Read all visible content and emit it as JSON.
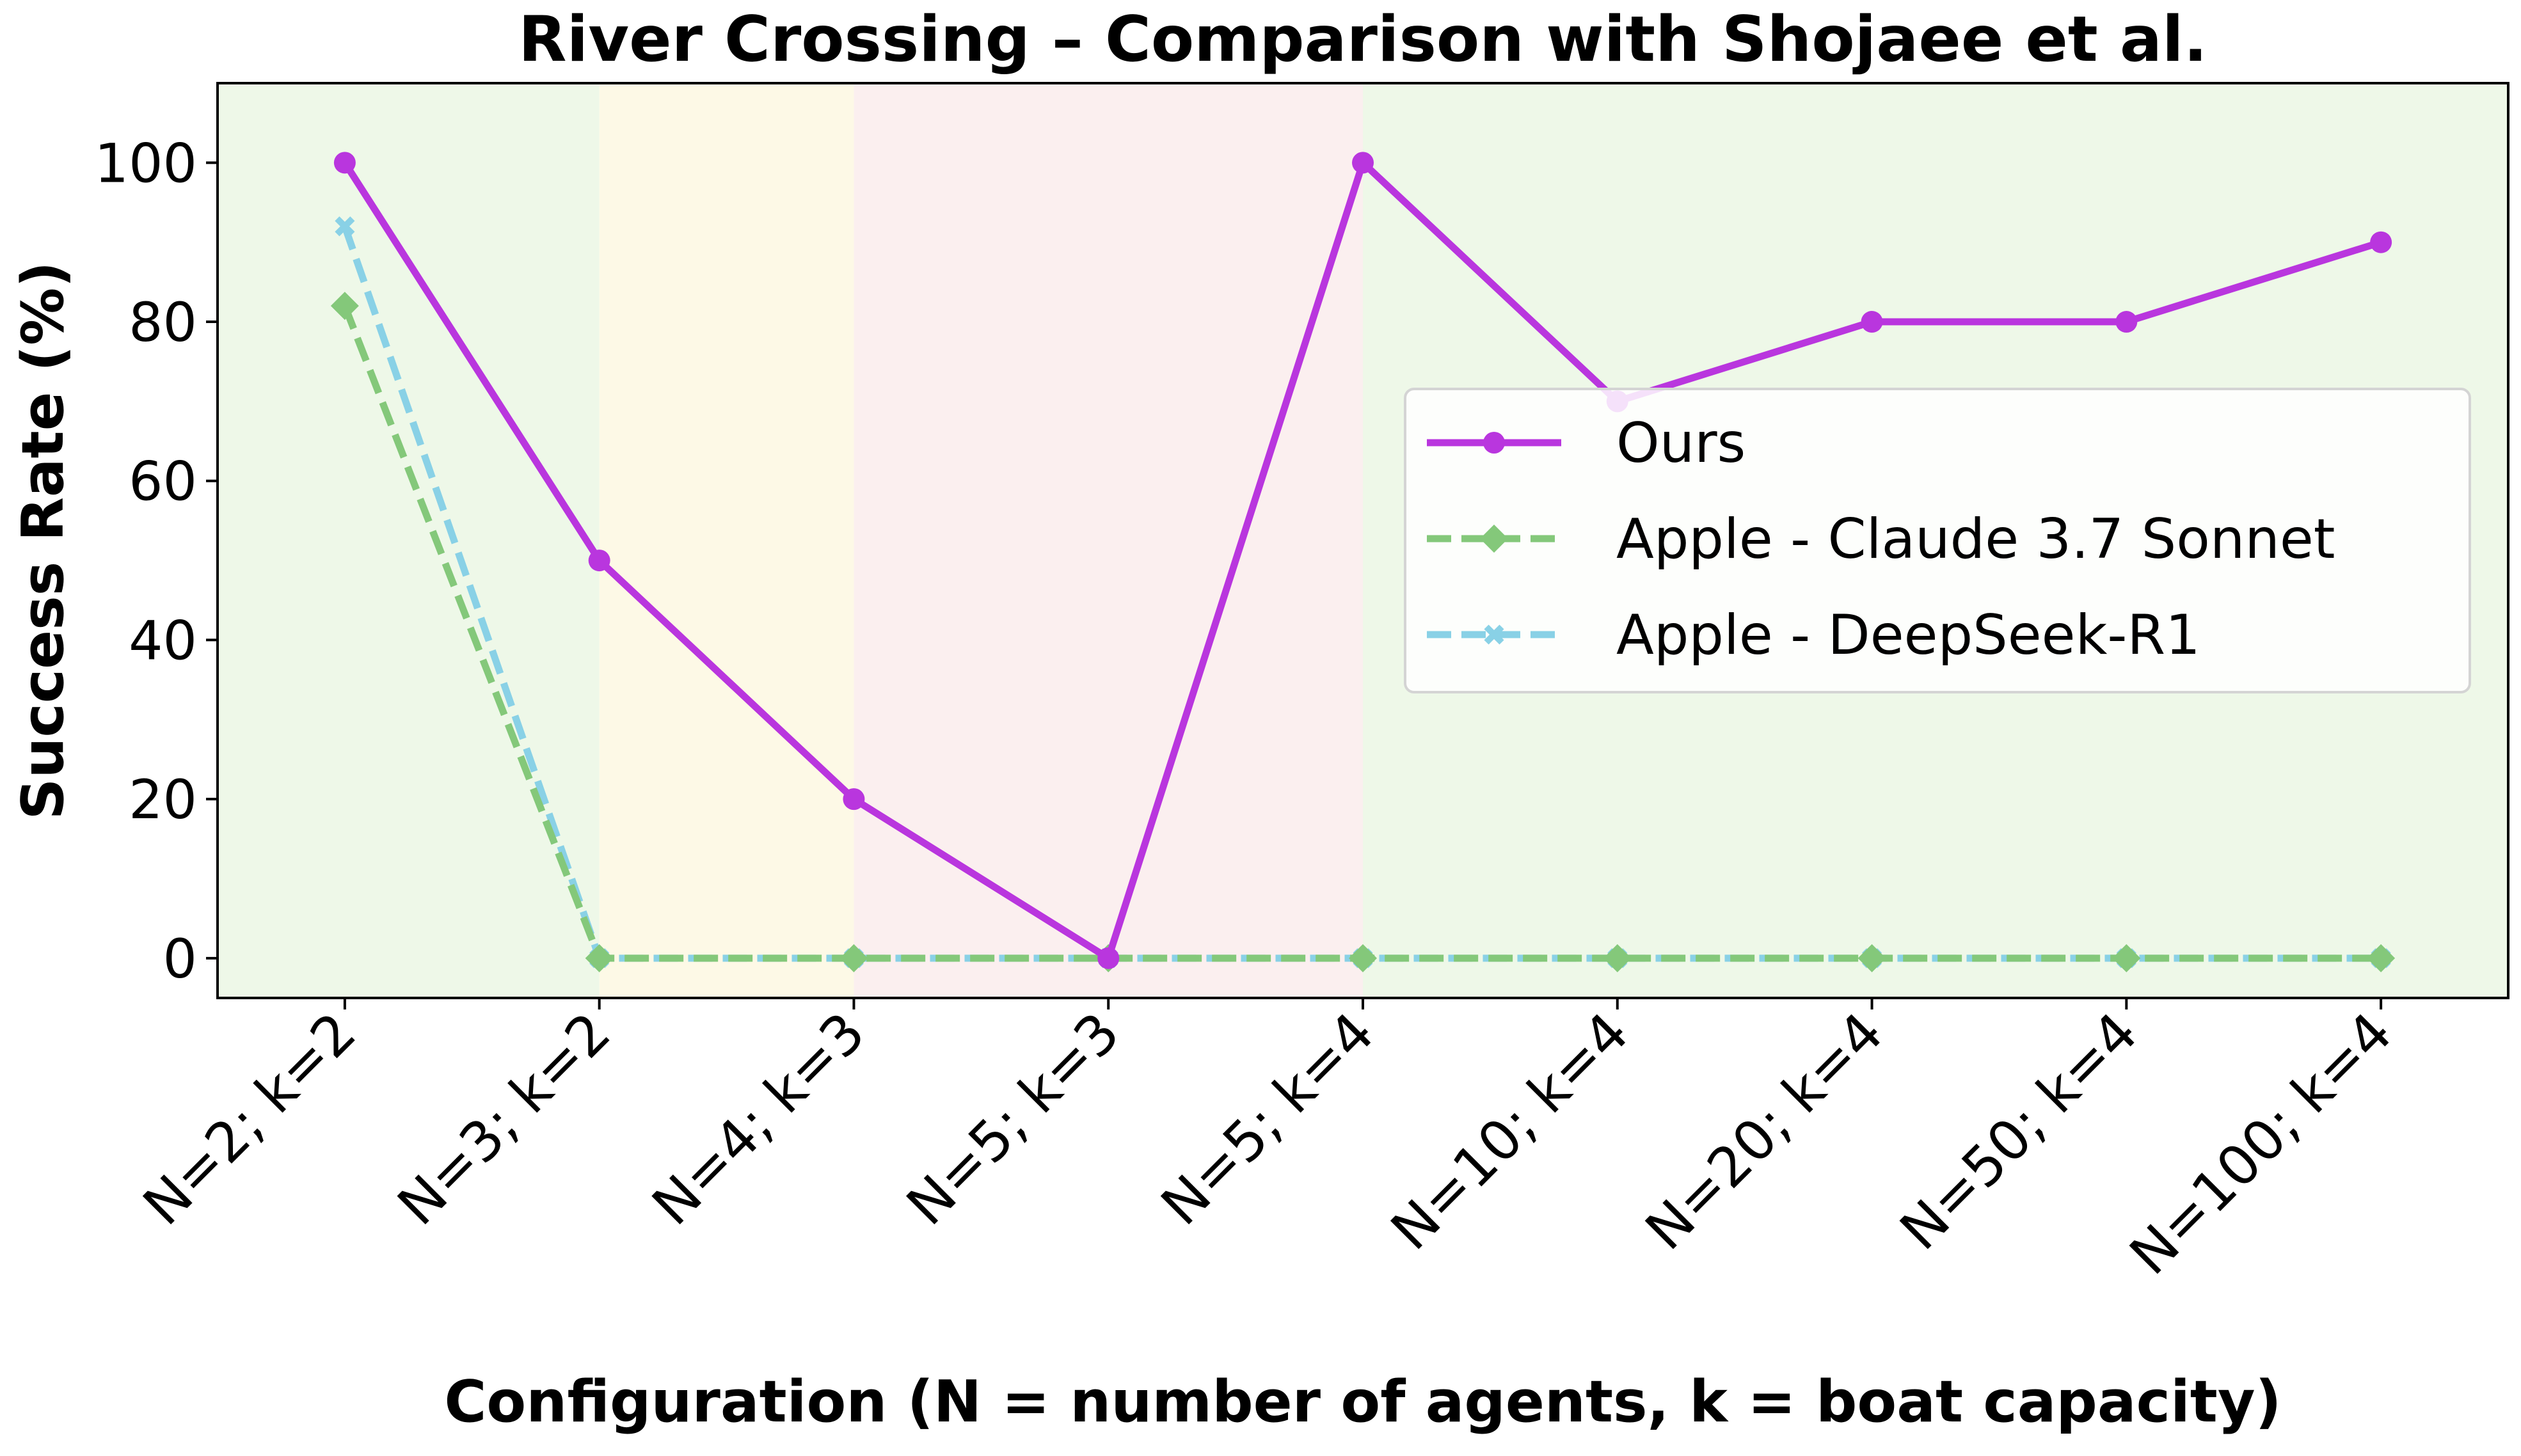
{
  "chart_data": {
    "type": "line",
    "title": "River Crossing – Comparison with Shojaee et al.",
    "xlabel": "Configuration (N = number of agents, k = boat capacity)",
    "ylabel": "Success Rate (%)",
    "categories": [
      "N=2; k=2",
      "N=3; k=2",
      "N=4; k=3",
      "N=5; k=3",
      "N=5; k=4",
      "N=10; k=4",
      "N=20; k=4",
      "N=50; k=4",
      "N=100; k=4"
    ],
    "ylim": [
      -5,
      110
    ],
    "yticks": [
      "0",
      "20",
      "40",
      "60",
      "80",
      "100"
    ],
    "grid": false,
    "legend_position": "center-right",
    "background_bands": [
      {
        "from_index": -0.5,
        "to_index": 1,
        "color": "#eef8e8"
      },
      {
        "from_index": 1,
        "to_index": 2,
        "color": "#fdf9e6"
      },
      {
        "from_index": 2,
        "to_index": 4,
        "color": "#fbefef"
      },
      {
        "from_index": 4,
        "to_index": 8.5,
        "color": "#eef8e8"
      }
    ],
    "series": [
      {
        "name": "Ours",
        "values": [
          100,
          50,
          20,
          0,
          100,
          70,
          80,
          80,
          90
        ],
        "color": "#b936de",
        "marker": "circle",
        "linestyle": "solid"
      },
      {
        "name": "Apple - Claude 3.7 Sonnet",
        "values": [
          82,
          0,
          0,
          0,
          0,
          0,
          0,
          0,
          0
        ],
        "color": "#84c87a",
        "marker": "diamond",
        "linestyle": "dashed"
      },
      {
        "name": "Apple - DeepSeek-R1",
        "values": [
          92,
          0,
          0,
          0,
          0,
          0,
          0,
          0,
          0
        ],
        "color": "#89d1e6",
        "marker": "x",
        "linestyle": "dashed"
      }
    ]
  }
}
